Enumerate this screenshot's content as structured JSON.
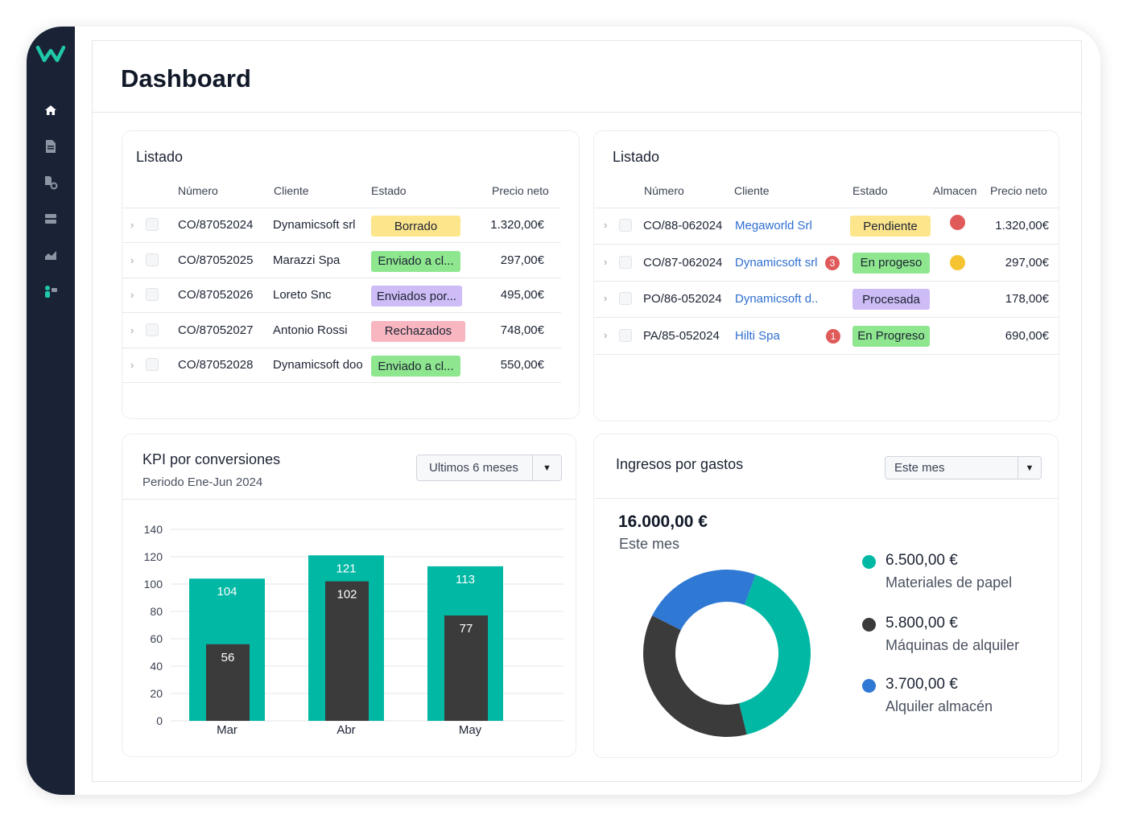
{
  "colors": {
    "sidebar": "#1a2236",
    "accent": "#00b8a3",
    "dark": "#3b3b3b",
    "blue": "#2f78d4",
    "link": "#2f6fd1"
  },
  "sidebar": {
    "items": [
      {
        "icon": "home-icon",
        "active": true
      },
      {
        "icon": "document-icon"
      },
      {
        "icon": "settings-file-icon"
      },
      {
        "icon": "inbox-icon"
      },
      {
        "icon": "chart-line-icon"
      },
      {
        "icon": "person-icon"
      }
    ]
  },
  "header": {
    "title": "Dashboard"
  },
  "list1": {
    "title": "Listado",
    "columns": [
      "Número",
      "Cliente",
      "Estado",
      "Precio neto"
    ],
    "rows": [
      {
        "numero": "CO/87052024",
        "cliente": "Dynamicsoft srl",
        "estado": "Borrado",
        "estado_bg": "#fde58c",
        "precio": "1.320,00€"
      },
      {
        "numero": "CO/87052025",
        "cliente": "Marazzi Spa",
        "estado": "Enviado a cl...",
        "estado_bg": "#8ee68e",
        "precio": "297,00€"
      },
      {
        "numero": "CO/87052026",
        "cliente": "Loreto Snc",
        "estado": "Enviados por...",
        "estado_bg": "#cdbcf5",
        "precio": "495,00€"
      },
      {
        "numero": "CO/87052027",
        "cliente": "Antonio Rossi",
        "estado": "Rechazados",
        "estado_bg": "#f7b6c0",
        "precio": "748,00€"
      },
      {
        "numero": "CO/87052028",
        "cliente": "Dynamicsoft doo",
        "estado": "Enviado a cl...",
        "estado_bg": "#8ee68e",
        "precio": "550,00€"
      }
    ]
  },
  "list2": {
    "title": "Listado",
    "columns": [
      "Número",
      "Cliente",
      "Estado",
      "Almacen",
      "Precio neto"
    ],
    "rows": [
      {
        "numero": "CO/88-062024",
        "cliente": "Megaworld Srl",
        "estado": "Pendiente",
        "estado_bg": "#fde58c",
        "almacen_color": "#e05a5a",
        "precio": "1.320,00€"
      },
      {
        "numero": "CO/87-062024",
        "cliente": "Dynamicsoft srl",
        "badge": "3",
        "estado": "En progeso",
        "estado_bg": "#8ee68e",
        "almacen_color": "#f6c431",
        "precio": "297,00€"
      },
      {
        "numero": "PO/86-052024",
        "cliente": "Dynamicsoft d..",
        "estado": "Procesada",
        "estado_bg": "#cdbcf5",
        "precio": "178,00€"
      },
      {
        "numero": "PA/85-052024",
        "cliente": "Hilti Spa",
        "badge": "1",
        "estado": "En Progreso",
        "estado_bg": "#8ee68e",
        "precio": "690,00€"
      }
    ]
  },
  "kpi": {
    "title": "KPI por conversiones",
    "subtitle": "Periodo Ene-Jun 2024",
    "select": "Ultimos 6 meses"
  },
  "chart_data": [
    {
      "type": "bar",
      "categories": [
        "Mar",
        "Abr",
        "May"
      ],
      "series": [
        {
          "values": [
            104,
            121,
            113
          ],
          "color": "#00b8a3"
        },
        {
          "values": [
            56,
            102,
            77
          ],
          "color": "#3b3b3b"
        }
      ],
      "yticks": [
        0,
        20,
        40,
        60,
        80,
        100,
        120,
        140
      ],
      "ylim": [
        0,
        140
      ],
      "grid": true,
      "title": "",
      "xlabel": "",
      "ylabel": ""
    },
    {
      "type": "pie",
      "donut": true,
      "total": "16.000,00 €",
      "total_label": "Este mes",
      "slices": [
        {
          "label": "Materiales de papel",
          "value": 6500,
          "display": "6.500,00 €",
          "color": "#00b8a3"
        },
        {
          "label": "Máquinas de alquiler",
          "value": 5800,
          "display": "5.800,00 €",
          "color": "#3b3b3b"
        },
        {
          "label": "Alquiler almacén",
          "value": 3700,
          "display": "3.700,00 €",
          "color": "#2f78d4"
        }
      ],
      "title": "Ingresos por gastos",
      "select": "Este mes"
    }
  ]
}
